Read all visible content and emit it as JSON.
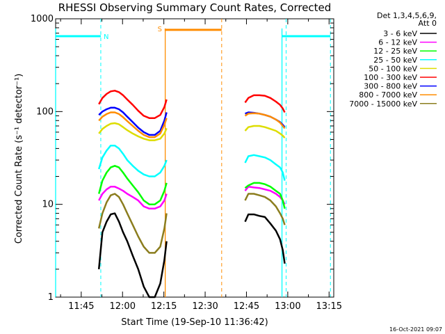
{
  "chart_data": {
    "type": "line",
    "title": "RHESSI Observing Summary Count Rates, Corrected",
    "xlabel": "Start Time (19-Sep-10 11:36:42)",
    "ylabel": "Corrected Count Rate (s⁻¹ detector⁻¹)",
    "y_scale": "log",
    "ylim": [
      1,
      1000
    ],
    "xlim_minutes": [
      -1,
      100
    ],
    "x_ticks": [
      {
        "label": "11:45",
        "minutes": 8.3
      },
      {
        "label": "12:00",
        "minutes": 23.3
      },
      {
        "label": "12:15",
        "minutes": 38.3
      },
      {
        "label": "12:30",
        "minutes": 53.3
      },
      {
        "label": "12:45",
        "minutes": 68.3
      },
      {
        "label": "13:00",
        "minutes": 83.3
      },
      {
        "label": "13:15",
        "minutes": 98.3
      }
    ],
    "y_ticks": [
      {
        "label": "1",
        "value": 1
      },
      {
        "label": "10",
        "value": 10
      },
      {
        "label": "100",
        "value": 100
      },
      {
        "label": "1000",
        "value": 1000
      }
    ],
    "legend_header": [
      "Det 1,3,4,5,6,9,",
      "Att 0"
    ],
    "legend_placement": "right",
    "series": [
      {
        "name": "3 - 6 keV",
        "color": "#000000",
        "segments": [
          [
            [
              14.7,
              2.0
            ],
            [
              16,
              5
            ],
            [
              17.5,
              6.5
            ],
            [
              19,
              7.8
            ],
            [
              20.5,
              8
            ],
            [
              22,
              6.5
            ],
            [
              23.5,
              5
            ],
            [
              25,
              4
            ],
            [
              27,
              2.8
            ],
            [
              29,
              2
            ],
            [
              31,
              1.3
            ],
            [
              33,
              1.0
            ],
            [
              35,
              1.0
            ],
            [
              37,
              1.4
            ],
            [
              38.5,
              2.5
            ],
            [
              39.3,
              4
            ]
          ],
          [
            [
              67.8,
              6.5
            ],
            [
              69,
              7.8
            ],
            [
              71,
              7.8
            ],
            [
              73,
              7.5
            ],
            [
              75,
              7.3
            ],
            [
              77,
              6.2
            ],
            [
              79,
              5.2
            ],
            [
              80.5,
              4.2
            ],
            [
              81.5,
              3.2
            ],
            [
              82.2,
              2.3
            ]
          ]
        ]
      },
      {
        "name": "6 - 12 keV",
        "color": "#ff00ff",
        "segments": [
          [
            [
              14.7,
              11
            ],
            [
              16,
              13
            ],
            [
              17.5,
              14.5
            ],
            [
              19,
              15.5
            ],
            [
              20.5,
              15.5
            ],
            [
              22,
              14.8
            ],
            [
              23.5,
              14
            ],
            [
              25,
              13
            ],
            [
              27,
              12
            ],
            [
              29,
              11
            ],
            [
              31,
              9.5
            ],
            [
              33,
              9
            ],
            [
              35,
              9
            ],
            [
              37,
              9.5
            ],
            [
              38.5,
              11
            ],
            [
              39.3,
              13
            ]
          ],
          [
            [
              67.8,
              14
            ],
            [
              69,
              15.5
            ],
            [
              71,
              15.2
            ],
            [
              73,
              15
            ],
            [
              75,
              14.5
            ],
            [
              77,
              14
            ],
            [
              79,
              13
            ],
            [
              80.5,
              12
            ],
            [
              81.5,
              11
            ],
            [
              82.2,
              10
            ]
          ]
        ]
      },
      {
        "name": "12 - 25 keV",
        "color": "#00ff00",
        "segments": [
          [
            [
              14.7,
              13
            ],
            [
              16,
              18
            ],
            [
              17.5,
              22
            ],
            [
              19,
              25
            ],
            [
              20.5,
              26
            ],
            [
              22,
              25
            ],
            [
              23.5,
              22
            ],
            [
              25,
              19
            ],
            [
              27,
              16
            ],
            [
              29,
              13.5
            ],
            [
              31,
              11
            ],
            [
              33,
              10
            ],
            [
              35,
              10
            ],
            [
              37,
              11
            ],
            [
              38.5,
              14
            ],
            [
              39.3,
              17
            ]
          ],
          [
            [
              67.8,
              15
            ],
            [
              69,
              16
            ],
            [
              71,
              17
            ],
            [
              73,
              17
            ],
            [
              75,
              16.5
            ],
            [
              77,
              15.5
            ],
            [
              79,
              14
            ],
            [
              80.5,
              13
            ],
            [
              81.5,
              11
            ],
            [
              82.2,
              9
            ]
          ]
        ]
      },
      {
        "name": "25 - 50 keV",
        "color": "#00ffff",
        "segments": [
          [
            [
              14.7,
              24
            ],
            [
              16,
              32
            ],
            [
              17.5,
              38
            ],
            [
              19,
              43
            ],
            [
              20.5,
              43
            ],
            [
              22,
              40
            ],
            [
              23.5,
              35
            ],
            [
              25,
              30
            ],
            [
              27,
              26
            ],
            [
              29,
              23
            ],
            [
              31,
              21
            ],
            [
              33,
              20
            ],
            [
              35,
              20
            ],
            [
              37,
              22
            ],
            [
              38.5,
              26
            ],
            [
              39.3,
              30
            ]
          ],
          [
            [
              67.8,
              28
            ],
            [
              69,
              33
            ],
            [
              71,
              34
            ],
            [
              73,
              33
            ],
            [
              75,
              32
            ],
            [
              77,
              30
            ],
            [
              79,
              27
            ],
            [
              80.5,
              25
            ],
            [
              81.5,
              22
            ],
            [
              82.2,
              18
            ]
          ]
        ]
      },
      {
        "name": "50 - 100 keV",
        "color": "#dddd00",
        "segments": [
          [
            [
              14.7,
              58
            ],
            [
              16,
              65
            ],
            [
              17.5,
              70
            ],
            [
              19,
              74
            ],
            [
              20.5,
              75
            ],
            [
              22,
              73
            ],
            [
              23.5,
              68
            ],
            [
              25,
              63
            ],
            [
              27,
              58
            ],
            [
              29,
              54
            ],
            [
              31,
              51
            ],
            [
              33,
              49
            ],
            [
              35,
              49
            ],
            [
              37,
              51
            ],
            [
              38.5,
              58
            ],
            [
              39.3,
              66
            ]
          ],
          [
            [
              67.8,
              62
            ],
            [
              69,
              68
            ],
            [
              71,
              70
            ],
            [
              73,
              70
            ],
            [
              75,
              68
            ],
            [
              77,
              65
            ],
            [
              79,
              62
            ],
            [
              80.5,
              58
            ],
            [
              81.5,
              55
            ],
            [
              82.2,
              52
            ]
          ]
        ]
      },
      {
        "name": "100 - 300 keV",
        "color": "#ff0000",
        "segments": [
          [
            [
              14.7,
              120
            ],
            [
              16,
              140
            ],
            [
              17.5,
              155
            ],
            [
              19,
              165
            ],
            [
              20.5,
              168
            ],
            [
              22,
              162
            ],
            [
              23.5,
              150
            ],
            [
              25,
              135
            ],
            [
              27,
              118
            ],
            [
              29,
              102
            ],
            [
              31,
              90
            ],
            [
              33,
              85
            ],
            [
              35,
              85
            ],
            [
              37,
              92
            ],
            [
              38.5,
              112
            ],
            [
              39.3,
              135
            ]
          ],
          [
            [
              67.8,
              125
            ],
            [
              69,
              140
            ],
            [
              71,
              150
            ],
            [
              73,
              150
            ],
            [
              75,
              148
            ],
            [
              77,
              140
            ],
            [
              79,
              128
            ],
            [
              80.5,
              118
            ],
            [
              81.5,
              108
            ],
            [
              82.2,
              98
            ]
          ]
        ]
      },
      {
        "name": "300 - 800 keV",
        "color": "#0000ff",
        "segments": [
          [
            [
              14.7,
              92
            ],
            [
              16,
              100
            ],
            [
              17.5,
              106
            ],
            [
              19,
              110
            ],
            [
              20.5,
              110
            ],
            [
              22,
              106
            ],
            [
              23.5,
              98
            ],
            [
              25,
              88
            ],
            [
              27,
              77
            ],
            [
              29,
              67
            ],
            [
              31,
              60
            ],
            [
              33,
              56
            ],
            [
              35,
              56
            ],
            [
              37,
              62
            ],
            [
              38.5,
              80
            ],
            [
              39.3,
              98
            ]
          ],
          [
            [
              67.8,
              95
            ],
            [
              69,
              98
            ],
            [
              71,
              97
            ],
            [
              73,
              95
            ],
            [
              75,
              92
            ],
            [
              77,
              88
            ],
            [
              79,
              82
            ],
            [
              80.5,
              77
            ],
            [
              81.5,
              72
            ],
            [
              82.2,
              68
            ]
          ]
        ]
      },
      {
        "name": "800 - 7000 keV",
        "color": "#ff8c00",
        "segments": [
          [
            [
              14.7,
              80
            ],
            [
              16,
              88
            ],
            [
              17.5,
              94
            ],
            [
              19,
              98
            ],
            [
              20.5,
              98
            ],
            [
              22,
              94
            ],
            [
              23.5,
              87
            ],
            [
              25,
              79
            ],
            [
              27,
              70
            ],
            [
              29,
              62
            ],
            [
              31,
              56
            ],
            [
              33,
              53
            ],
            [
              35,
              53
            ],
            [
              37,
              58
            ],
            [
              38.5,
              72
            ],
            [
              39.3,
              85
            ]
          ],
          [
            [
              67.8,
              90
            ],
            [
              69,
              95
            ],
            [
              71,
              96
            ],
            [
              73,
              95
            ],
            [
              75,
              92
            ],
            [
              77,
              88
            ],
            [
              79,
              82
            ],
            [
              80.5,
              76
            ],
            [
              81.5,
              70
            ],
            [
              82.2,
              66
            ]
          ]
        ]
      },
      {
        "name": "7000 - 15000 keV",
        "color": "#8b7d1e",
        "segments": [
          [
            [
              14.7,
              5.5
            ],
            [
              16,
              8
            ],
            [
              17.5,
              10.5
            ],
            [
              19,
              12.5
            ],
            [
              20.5,
              13
            ],
            [
              22,
              12
            ],
            [
              23.5,
              10
            ],
            [
              25,
              8
            ],
            [
              27,
              6
            ],
            [
              29,
              4.5
            ],
            [
              31,
              3.5
            ],
            [
              33,
              3
            ],
            [
              35,
              3
            ],
            [
              37,
              3.5
            ],
            [
              38.5,
              5.5
            ],
            [
              39.3,
              8
            ]
          ],
          [
            [
              67.8,
              11
            ],
            [
              69,
              13
            ],
            [
              71,
              13
            ],
            [
              73,
              12.5
            ],
            [
              75,
              12
            ],
            [
              77,
              11
            ],
            [
              79,
              9.5
            ],
            [
              80.5,
              8
            ],
            [
              81.5,
              7
            ],
            [
              82.2,
              6
            ]
          ]
        ]
      }
    ],
    "annotations": {
      "night_label": "N",
      "saa_label": "S",
      "night_color": "#00ffff",
      "saa_color": "#ff8c00",
      "night_intervals": [
        [
          -1,
          15.4
        ],
        [
          81.2,
          98.8
        ]
      ],
      "night_level": 650,
      "saa_interval": [
        38.6,
        59.3
      ],
      "saa_level": 760,
      "solid_markers": [
        {
          "minutes": -1,
          "color": "#00ffff"
        },
        {
          "minutes": 38.8,
          "color": "#ff8c00"
        },
        {
          "minutes": 81.2,
          "color": "#00ffff"
        }
      ],
      "dashed_markers": [
        {
          "minutes": 15.4,
          "color": "#00ffff"
        },
        {
          "minutes": 59.3,
          "color": "#ff8c00"
        },
        {
          "minutes": 98.8,
          "color": "#00ffff"
        },
        {
          "minutes": 82.7,
          "color": "#00ffff"
        }
      ]
    },
    "timestamp": "16-Oct-2021 09:07"
  }
}
